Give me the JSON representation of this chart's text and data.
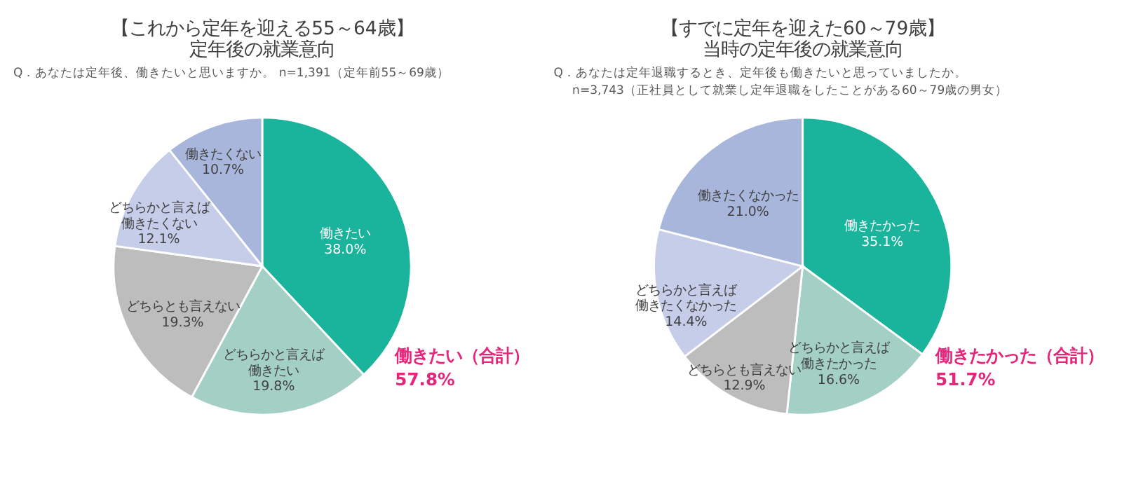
{
  "chart_data": [
    {
      "type": "pie",
      "title": "【これから定年を迎える55～64歳】",
      "subtitle": "定年後の就業意向",
      "categories": [
        "働きたい",
        "どちらかと言えば働きたい",
        "どちらとも言えない",
        "どちらかと言えば働きたくない",
        "働きたくない"
      ],
      "values": [
        38.0,
        19.8,
        19.3,
        12.1,
        10.7
      ],
      "value_labels": [
        "38.0%",
        "19.8%",
        "19.3%",
        "12.1%",
        "10.7%"
      ],
      "colors": [
        "#1ab49c",
        "#a3cfc4",
        "#bdbdbd",
        "#c5cde8",
        "#a8b6dc"
      ],
      "annotations": [
        "Q．あなたは定年後、働きたいと思いますか。 n=1,391（定年前55～69歳）",
        "働きたい（合計）",
        "57.8%"
      ]
    },
    {
      "type": "pie",
      "title": "【すでに定年を迎えた60～79歳】",
      "subtitle": "当時の定年後の就業意向",
      "categories": [
        "働きたかった",
        "どちらかと言えば働きたかった",
        "どちらとも言えない",
        "どちらかと言えば働きたくなかった",
        "働きたくなかった"
      ],
      "values": [
        35.1,
        16.6,
        12.9,
        14.4,
        21.0
      ],
      "value_labels": [
        "35.1%",
        "16.6%",
        "12.9%",
        "14.4%",
        "21.0%"
      ],
      "colors": [
        "#1ab49c",
        "#a3cfc4",
        "#bdbdbd",
        "#c5cde8",
        "#a8b6dc"
      ],
      "annotations": [
        "Q．あなたは定年退職するとき、定年後も働きたいと思っていましたか。",
        "n=3,743（正社員として就業し定年退職をしたことがある60～79歳の男女）",
        "働きたかった（合計）",
        "51.7%"
      ]
    }
  ]
}
